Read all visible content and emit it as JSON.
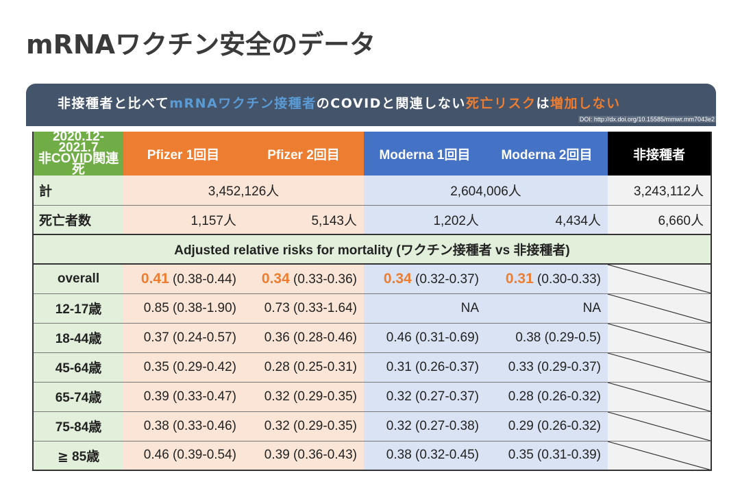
{
  "title": "mRNAワクチン安全のデータ",
  "banner": {
    "part1": "非接種者と比べて",
    "part2": "mRNAワクチン接種者",
    "part3": "のCOVIDと関連しない",
    "part4": "死亡リスク",
    "part5": "は",
    "part6": "増加しない",
    "doi": "DOI: http://dx.doi.org/10.15585/mmwr.mm7043e2"
  },
  "table": {
    "period_line1": "2020.12-2021.7",
    "period_line2": "非COVID関連死",
    "headers": [
      "Pfizer 1回目",
      "Pfizer 2回目",
      "Moderna 1回目",
      "Moderna 2回目",
      "非接種者"
    ],
    "total_label": "計",
    "total": {
      "pfizer": "3,452,126人",
      "moderna": "2,604,006人",
      "unvax": "3,243,112人"
    },
    "deaths_label": "死亡者数",
    "deaths": [
      "1,157人",
      "5,143人",
      "1,202人",
      "4,434人",
      "6,660人"
    ],
    "subheader": "Adjusted relative risks for mortality (ワクチン接種者 vs 非接種者)",
    "overall": {
      "label": "overall",
      "values": [
        {
          "rr": "0.41",
          "ci": "(0.38-0.44)"
        },
        {
          "rr": "0.34",
          "ci": "(0.33-0.36)"
        },
        {
          "rr": "0.34",
          "ci": "(0.32-0.37)"
        },
        {
          "rr": "0.31",
          "ci": "(0.30-0.33)"
        }
      ]
    },
    "age_rows": [
      {
        "label": "12-17歳",
        "values": [
          "0.85 (0.38-1.90)",
          "0.73 (0.33-1.64)",
          "NA",
          "NA"
        ]
      },
      {
        "label": "18-44歳",
        "values": [
          "0.37 (0.24-0.57)",
          "0.36 (0.28-0.46)",
          "0.46 (0.31-0.69)",
          "0.38 (0.29-0.5)"
        ]
      },
      {
        "label": "45-64歳",
        "values": [
          "0.35 (0.29-0.42)",
          "0.28 (0.25-0.31)",
          "0.31 (0.26-0.37)",
          "0.33 (0.29-0.37)"
        ]
      },
      {
        "label": "65-74歳",
        "values": [
          "0.39 (0.33-0.47)",
          "0.32 (0.29-0.35)",
          "0.32 (0.27-0.37)",
          "0.28 (0.26-0.32)"
        ]
      },
      {
        "label": "75-84歳",
        "values": [
          "0.38 (0.33-0.46)",
          "0.32 (0.29-0.35)",
          "0.32 (0.27-0.38)",
          "0.29 (0.26-0.32)"
        ]
      },
      {
        "label": "≧ 85歳",
        "values": [
          "0.46 (0.39-0.54)",
          "0.39 (0.36-0.43)",
          "0.38 (0.32-0.45)",
          "0.35 (0.31-0.39)"
        ]
      }
    ]
  },
  "colors": {
    "green_header": "#70ad47",
    "orange_header": "#ed7d31",
    "blue_header": "#4472c4",
    "black_header": "#000000",
    "banner_bg": "#44546a",
    "highlight": "#ed7d31"
  }
}
